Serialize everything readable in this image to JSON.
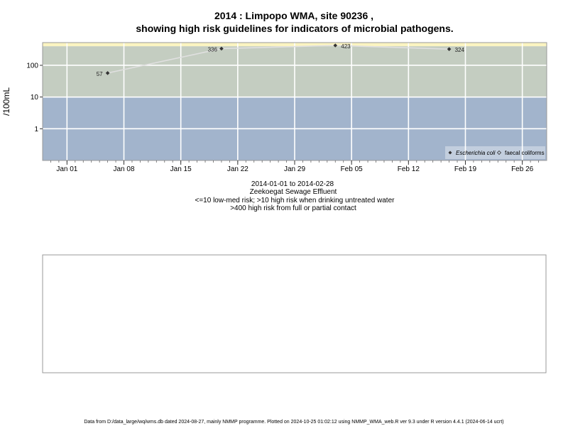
{
  "chart_data": {
    "type": "line",
    "title": [
      "2014 : Limpopo WMA, site 90236 ,",
      "showing high risk guidelines for indicators of microbial pathogens."
    ],
    "ylabel": "/100mL",
    "y_scale": "log",
    "ylim": [
      0.1,
      520
    ],
    "yticks": [
      1,
      10,
      100
    ],
    "ytick_labels": [
      "1",
      "10",
      "100"
    ],
    "xlim": [
      "2013-12-29",
      "2014-03-01"
    ],
    "xticks": [
      "2014-01-01",
      "2014-01-08",
      "2014-01-15",
      "2014-01-22",
      "2014-01-29",
      "2014-02-05",
      "2014-02-12",
      "2014-02-19",
      "2014-02-26"
    ],
    "xtick_labels": [
      "Jan 01",
      "Jan 08",
      "Jan 15",
      "Jan 22",
      "Jan 29",
      "Feb 05",
      "Feb 12",
      "Feb 19",
      "Feb 26"
    ],
    "risk_bands": [
      {
        "from": 0.1,
        "to": 10,
        "color": "#a2b4cc"
      },
      {
        "from": 10,
        "to": 400,
        "color": "#c4cdc1"
      },
      {
        "from": 400,
        "to": 520,
        "color": "#fbf4c1"
      }
    ],
    "grid": true,
    "series": [
      {
        "name": "Escherichia coli",
        "marker": "filled-diamond",
        "line_color": "#e0e0e0",
        "x": [
          "2014-01-06",
          "2014-01-20",
          "2014-02-03",
          "2014-02-17"
        ],
        "y": [
          57,
          336,
          423,
          324
        ],
        "labels": [
          "57",
          "336",
          "423",
          "324"
        ]
      },
      {
        "name": "faecal coliforms",
        "marker": "open-diamond",
        "x": [],
        "y": []
      }
    ],
    "legend_placement": "bottom-right",
    "xlabel_lines": [
      "2014-01-01 to 2014-02-28",
      "Zeekoegat Sewage Effluent",
      "<=10 low-med risk; >10 high risk when drinking untreated water",
      ">400 high risk from full or partial contact"
    ]
  },
  "footer": "Data from D:/data_large/wq/wms.db dated 2024-08-27, mainly NMMP programme. Plotted on 2024-10-25 01:02:12 using NMMP_WMA_web.R ver 9.3 under R version 4.4.1 (2024-06-14 ucrt)",
  "colors": {
    "frame": "#999999",
    "grid": "#ffffff",
    "marker": "#333333"
  }
}
